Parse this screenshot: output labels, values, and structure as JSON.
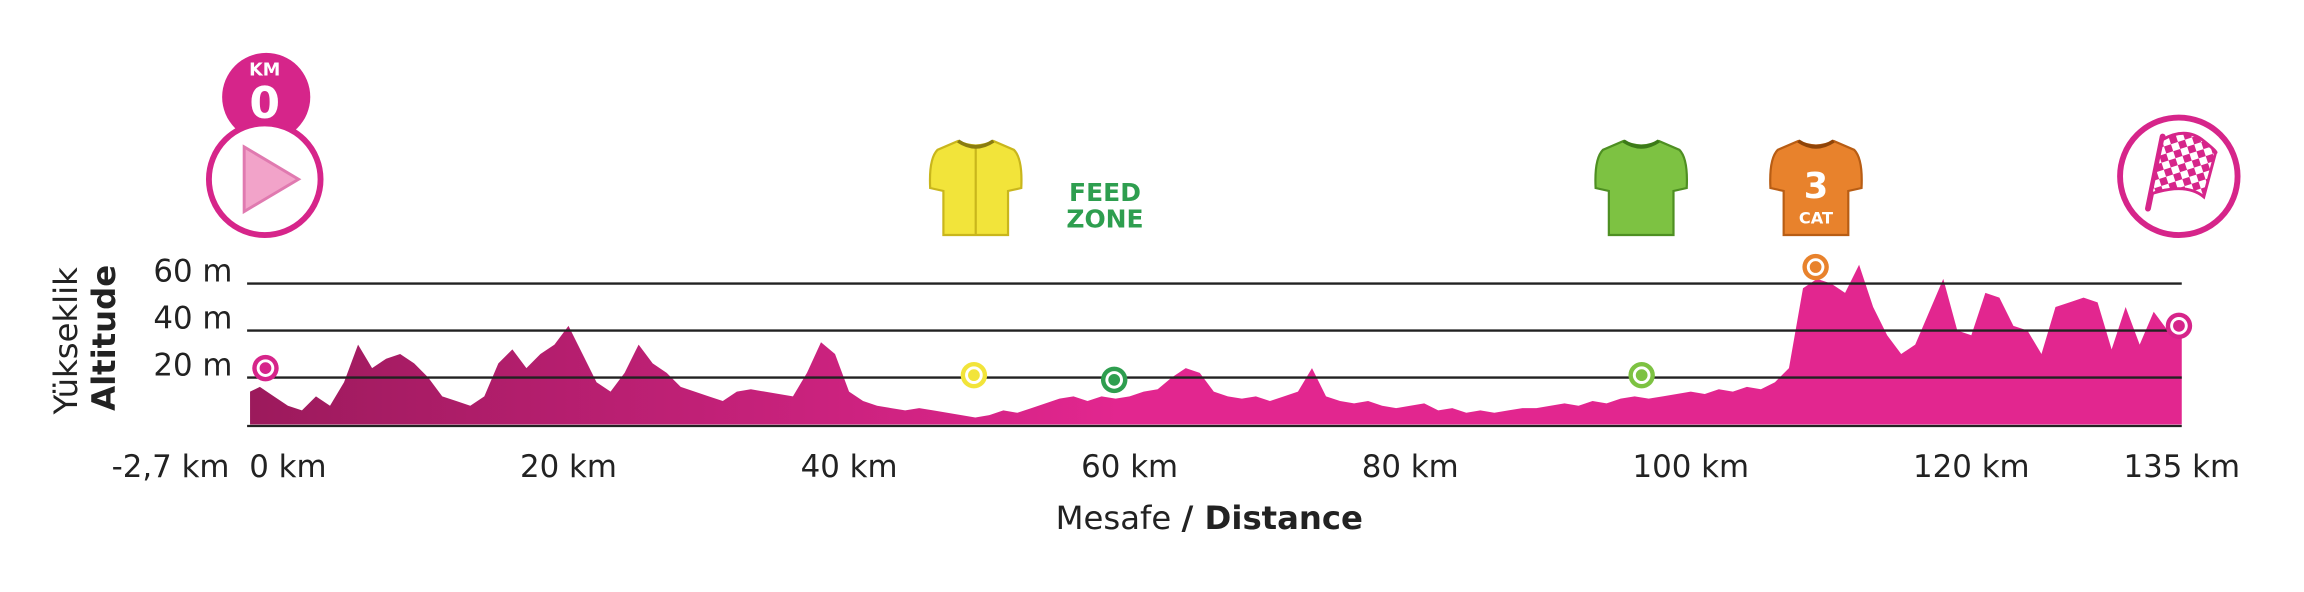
{
  "chart_data": {
    "type": "area",
    "ylabel": "Yükseklik",
    "ylabel_en": "Altitude",
    "xlabel": "Mesafe",
    "xlabel_en": "/ Distance",
    "gradient": [
      "#9c1a5c",
      "#e2268f"
    ],
    "grid": true,
    "xlim": [
      -2.7,
      135
    ],
    "ylim": [
      0,
      70
    ],
    "yticks": [
      {
        "value": 20,
        "label": "20 m"
      },
      {
        "value": 40,
        "label": "40 m"
      },
      {
        "value": 60,
        "label": "60 m"
      }
    ],
    "xticks": [
      {
        "value": -2.7,
        "label": "-2,7 km"
      },
      {
        "value": 0,
        "label": "0 km"
      },
      {
        "value": 20,
        "label": "20 km"
      },
      {
        "value": 40,
        "label": "40 km"
      },
      {
        "value": 60,
        "label": "60 km"
      },
      {
        "value": 80,
        "label": "80 km"
      },
      {
        "value": 100,
        "label": "100 km"
      },
      {
        "value": 120,
        "label": "120 km"
      },
      {
        "value": 135,
        "label": "135 km"
      }
    ],
    "x": [
      -2.7,
      -2,
      -1,
      0,
      1,
      2,
      3,
      4,
      5,
      6,
      7,
      8,
      9,
      10,
      11,
      12,
      13,
      14,
      15,
      16,
      17,
      18,
      19,
      20,
      21,
      22,
      23,
      24,
      25,
      26,
      27,
      28,
      29,
      30,
      31,
      32,
      33,
      34,
      35,
      36,
      37,
      38,
      39,
      40,
      41,
      42,
      43,
      44,
      45,
      46,
      47,
      48,
      49,
      50,
      51,
      52,
      53,
      54,
      55,
      56,
      57,
      58,
      59,
      60,
      61,
      62,
      63,
      64,
      65,
      66,
      67,
      68,
      69,
      70,
      71,
      72,
      73,
      74,
      75,
      76,
      77,
      78,
      79,
      80,
      81,
      82,
      83,
      84,
      85,
      86,
      87,
      88,
      89,
      90,
      91,
      92,
      93,
      94,
      95,
      96,
      97,
      98,
      99,
      100,
      101,
      102,
      103,
      104,
      105,
      106,
      107,
      108,
      109,
      110,
      111,
      112,
      113,
      114,
      115,
      116,
      117,
      118,
      119,
      120,
      121,
      122,
      123,
      124,
      125,
      126,
      127,
      128,
      129,
      130,
      131,
      132,
      133,
      134,
      135
    ],
    "values": [
      14,
      16,
      12,
      8,
      6,
      12,
      8,
      18,
      34,
      24,
      28,
      30,
      26,
      20,
      12,
      10,
      8,
      12,
      26,
      32,
      24,
      30,
      34,
      42,
      30,
      18,
      14,
      22,
      34,
      26,
      22,
      16,
      14,
      12,
      10,
      14,
      15,
      14,
      13,
      12,
      22,
      35,
      30,
      14,
      10,
      8,
      7,
      6,
      7,
      6,
      5,
      4,
      3,
      4,
      6,
      5,
      7,
      9,
      11,
      12,
      10,
      12,
      11,
      12,
      14,
      15,
      20,
      24,
      22,
      14,
      12,
      11,
      12,
      10,
      12,
      14,
      24,
      12,
      10,
      9,
      10,
      8,
      7,
      8,
      9,
      6,
      7,
      5,
      6,
      5,
      6,
      7,
      7,
      8,
      9,
      8,
      10,
      9,
      11,
      12,
      11,
      12,
      13,
      14,
      13,
      15,
      14,
      16,
      15,
      18,
      24,
      58,
      62,
      60,
      56,
      68,
      50,
      38,
      30,
      34,
      48,
      62,
      40,
      38,
      56,
      54,
      42,
      40,
      30,
      50,
      52,
      54,
      52,
      32,
      50,
      34,
      48,
      40,
      42
    ],
    "markers": [
      {
        "x": -1.6,
        "y": 24,
        "color": "#d6258a"
      },
      {
        "x": 48.9,
        "y": 21,
        "color": "#f2e43a"
      },
      {
        "x": 58.9,
        "y": 19,
        "color": "#2e9e4f"
      },
      {
        "x": 96.5,
        "y": 21,
        "color": "#7dc242"
      },
      {
        "x": 108.9,
        "y": 67,
        "color": "#e8822c"
      },
      {
        "x": 134.8,
        "y": 42,
        "color": "#d6258a"
      }
    ],
    "annotations": {
      "km_label": "KM",
      "km_value": "0",
      "feed": "FEED",
      "zone": "ZONE",
      "cat_number": "3",
      "cat_label": "CAT"
    }
  }
}
